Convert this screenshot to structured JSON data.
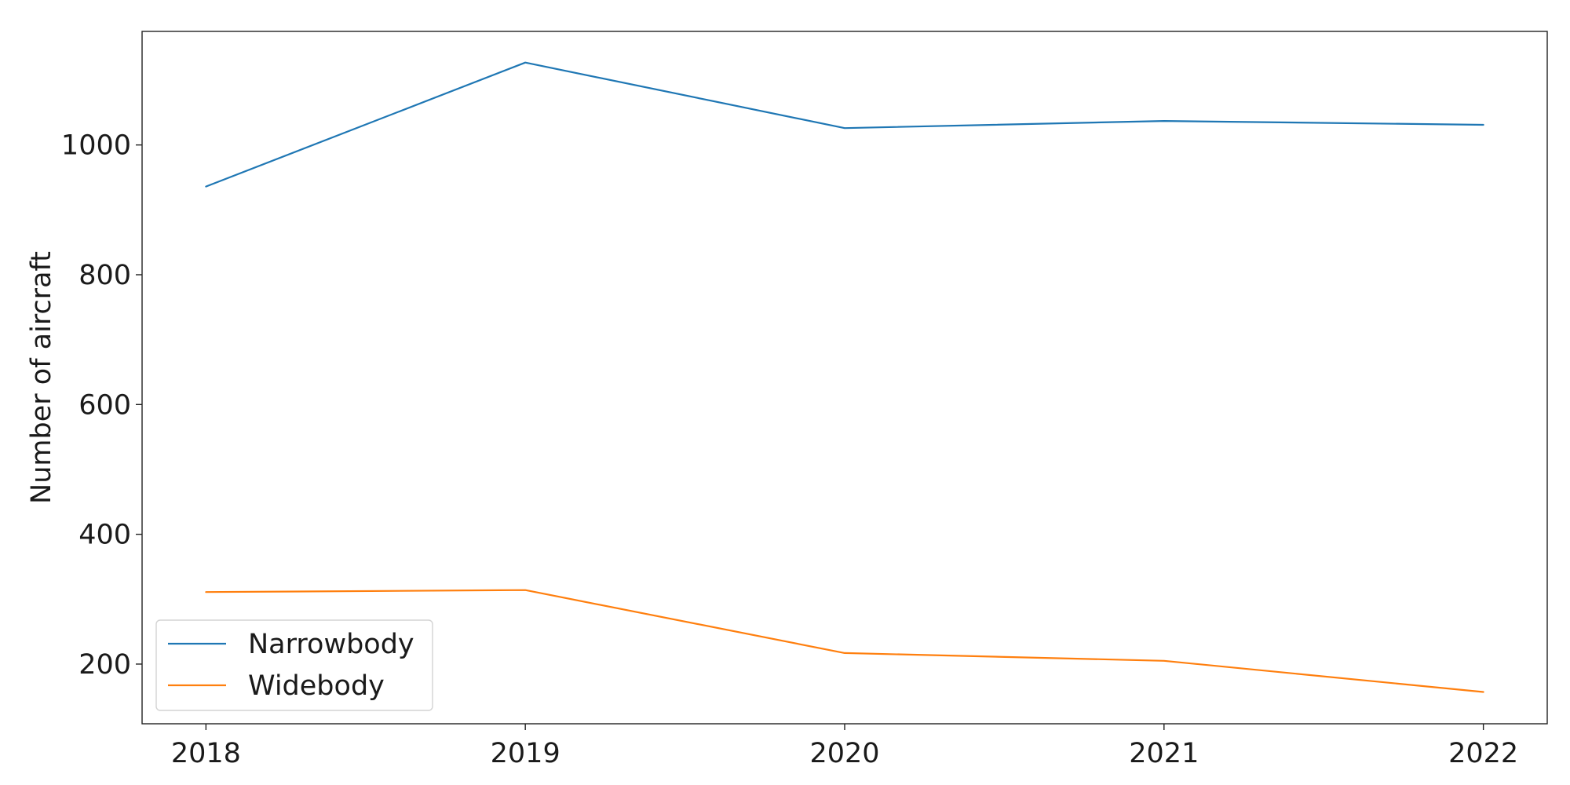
{
  "chart_data": {
    "type": "line",
    "title": "",
    "xlabel": "",
    "ylabel": "Number of aircraft",
    "x": [
      2018,
      2019,
      2020,
      2021,
      2022
    ],
    "x_tick_labels": [
      "2018",
      "2019",
      "2020",
      "2021",
      "2022"
    ],
    "y_ticks": [
      200,
      400,
      600,
      800,
      1000
    ],
    "y_tick_labels": [
      "200",
      "400",
      "600",
      "800",
      "1000"
    ],
    "xlim": [
      2017.8,
      2022.2
    ],
    "ylim": [
      108,
      1175
    ],
    "grid": false,
    "legend_position": "lower-left",
    "series": [
      {
        "name": "Narrowbody",
        "color": "#1f77b4",
        "values": [
          936,
          1127,
          1026,
          1037,
          1031
        ]
      },
      {
        "name": "Widebody",
        "color": "#ff7f0e",
        "values": [
          311,
          314,
          217,
          205,
          157
        ]
      }
    ]
  }
}
